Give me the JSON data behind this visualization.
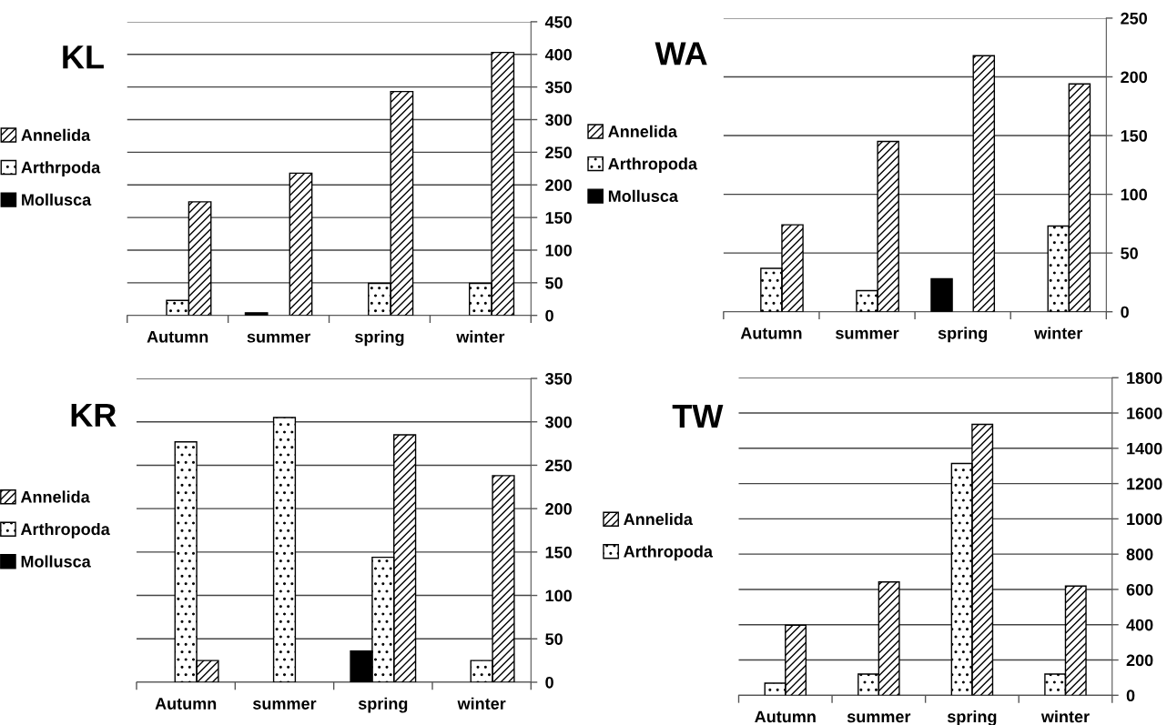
{
  "chart_data": [
    {
      "type": "bar",
      "title": "KL",
      "categories": [
        "Autumn",
        "summer",
        "spring",
        "winter"
      ],
      "ylim": [
        0,
        450
      ],
      "yticks": [
        0,
        50,
        100,
        150,
        200,
        250,
        300,
        350,
        400,
        450
      ],
      "grid": "y",
      "legend": "left",
      "series": [
        {
          "name": "Mollusca",
          "color": "#000000",
          "values": [
            0,
            4,
            0,
            0
          ]
        },
        {
          "name": "Arthrpoda",
          "color": "#ffffff",
          "values": [
            23,
            0,
            49,
            49
          ]
        },
        {
          "name": "Annelida",
          "color": "#ffffff",
          "values": [
            174,
            218,
            343,
            403
          ]
        }
      ]
    },
    {
      "type": "bar",
      "title": "WA",
      "categories": [
        "Autumn",
        "summer",
        "spring",
        "winter"
      ],
      "ylim": [
        0,
        250
      ],
      "yticks": [
        0,
        50,
        100,
        150,
        200,
        250
      ],
      "grid": "y",
      "legend": "left",
      "series": [
        {
          "name": "Mollusca",
          "color": "#000000",
          "values": [
            0,
            0,
            28,
            0
          ]
        },
        {
          "name": "Arthropoda",
          "color": "#ffffff",
          "values": [
            37,
            18,
            0,
            73
          ]
        },
        {
          "name": "Annelida",
          "color": "#ffffff",
          "values": [
            74,
            145,
            218,
            194
          ]
        }
      ]
    },
    {
      "type": "bar",
      "title": "KR",
      "categories": [
        "Autumn",
        "summer",
        "spring",
        "winter"
      ],
      "ylim": [
        0,
        350
      ],
      "yticks": [
        0,
        50,
        100,
        150,
        200,
        250,
        300,
        350
      ],
      "grid": "y",
      "legend": "left",
      "series": [
        {
          "name": "Mollusca",
          "color": "#000000",
          "values": [
            0,
            0,
            36,
            0
          ]
        },
        {
          "name": "Arthropoda",
          "color": "#ffffff",
          "values": [
            277,
            305,
            144,
            25
          ]
        },
        {
          "name": "Annelida",
          "color": "#ffffff",
          "values": [
            25,
            0,
            285,
            238
          ]
        }
      ]
    },
    {
      "type": "bar",
      "title": "TW",
      "categories": [
        "Autumn",
        "summer",
        "spring",
        "winter"
      ],
      "ylim": [
        0,
        1800
      ],
      "yticks": [
        0,
        200,
        400,
        600,
        800,
        1000,
        1200,
        1400,
        1600,
        1800
      ],
      "grid": "y",
      "legend": "left",
      "series": [
        {
          "name": "Arthropoda",
          "color": "#ffffff",
          "values": [
            69,
            120,
            1314,
            120
          ]
        },
        {
          "name": "Annelida",
          "color": "#ffffff",
          "values": [
            397,
            642,
            1536,
            619
          ]
        }
      ]
    }
  ]
}
